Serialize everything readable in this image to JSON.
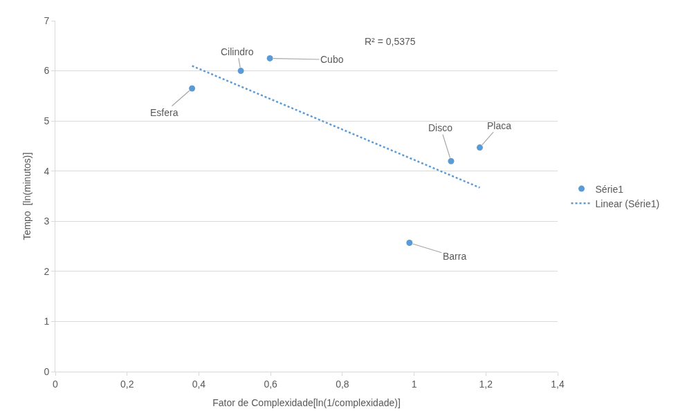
{
  "chart_data": {
    "type": "scatter",
    "xlabel": "Fator de Complexidade[ln(1/complexidade)]",
    "ylabel": "Tempo  [ln(minutos)]",
    "series": [
      {
        "name": "Série1",
        "color": "#5b9bd5",
        "marker": "circle",
        "x": [
          0.381,
          0.517,
          0.598,
          1.103,
          1.183,
          0.987
        ],
        "values": [
          5.65,
          6.0,
          6.25,
          4.2,
          4.47,
          2.57
        ]
      },
      {
        "name": "Linear (Série1)",
        "type": "line",
        "color": "#5b9bd5",
        "line_style": "dotted",
        "marker": "none",
        "x": [
          0.381,
          1.183
        ],
        "values": [
          6.1,
          3.67
        ]
      }
    ],
    "annotations": [
      {
        "text": "Esfera",
        "x": 0.381,
        "y": 5.65
      },
      {
        "text": "Cilindro",
        "x": 0.517,
        "y": 6.0
      },
      {
        "text": "Cubo",
        "x": 0.598,
        "y": 6.25
      },
      {
        "text": "Disco",
        "x": 1.103,
        "y": 4.2
      },
      {
        "text": "Placa",
        "x": 1.183,
        "y": 4.47
      },
      {
        "text": "Barra",
        "x": 0.987,
        "y": 2.57
      },
      "R² = 0,5375"
    ],
    "xlim": [
      0,
      1.4
    ],
    "xticks": [
      0,
      {
        "value": 0.2,
        "label": "0,2"
      },
      {
        "value": 0.4,
        "label": "0,4"
      },
      {
        "value": 0.6,
        "label": "0,6"
      },
      {
        "value": 0.8,
        "label": "0,8"
      },
      1,
      {
        "value": 1.2,
        "label": "1,2"
      },
      {
        "value": 1.4,
        "label": "1,4"
      }
    ],
    "ylim": [
      0,
      7
    ],
    "yticks": [
      0,
      1,
      2,
      3,
      4,
      5,
      6,
      7
    ],
    "grid": "y",
    "legend": "right"
  }
}
